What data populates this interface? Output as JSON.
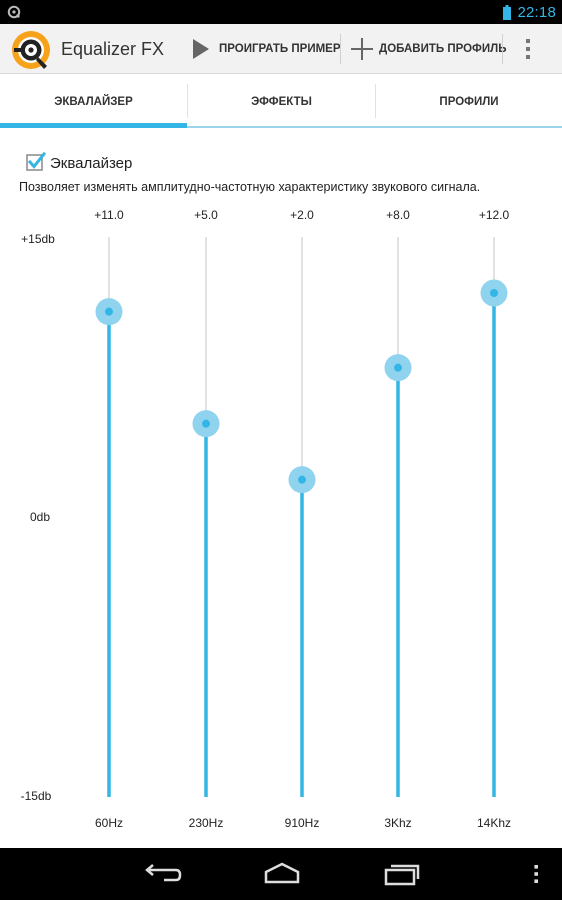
{
  "status_bar": {
    "time": "22:18",
    "left_icon": "app-notification-icon",
    "battery_icon": "battery-icon",
    "accent_color": "#33b5e5"
  },
  "action_bar": {
    "app_icon": "equalizer-fx-logo-icon",
    "title": "Equalizer FX",
    "play_label": "ПРОИГРАТЬ ПРИМЕР",
    "play_icon": "play-icon",
    "add_label": "ДОБАВИТЬ ПРОФИЛЬ",
    "add_icon": "plus-icon",
    "overflow_icon": "overflow-menu-icon"
  },
  "tabs": [
    {
      "label": "ЭКВАЛАЙЗЕР",
      "selected": true
    },
    {
      "label": "ЭФФЕКТЫ",
      "selected": false
    },
    {
      "label": "ПРОФИЛИ",
      "selected": false
    }
  ],
  "equalizer": {
    "enabled": true,
    "label": "Эквалайзер",
    "description": "Позволяет изменять амплитудно-частотную характеристику звукового сигнала.",
    "scale_labels": {
      "max": "+15db",
      "mid": "0db",
      "min": "-15db"
    },
    "range": [
      -15,
      15
    ],
    "bands": [
      {
        "freq": "60Hz",
        "value_label": "+11.0",
        "value": 11.0
      },
      {
        "freq": "230Hz",
        "value_label": "+5.0",
        "value": 5.0
      },
      {
        "freq": "910Hz",
        "value_label": "+2.0",
        "value": 2.0
      },
      {
        "freq": "3Khz",
        "value_label": "+8.0",
        "value": 8.0
      },
      {
        "freq": "14Khz",
        "value_label": "+12.0",
        "value": 12.0
      }
    ],
    "colors": {
      "active": "#33b5e5",
      "track": "#d8d8d8",
      "thumb_halo": "#8fd3ef"
    }
  },
  "nav_bar": {
    "back_icon": "back-icon",
    "home_icon": "home-icon",
    "recents_icon": "recent-apps-icon",
    "menu_icon": "menu-dots-icon"
  }
}
